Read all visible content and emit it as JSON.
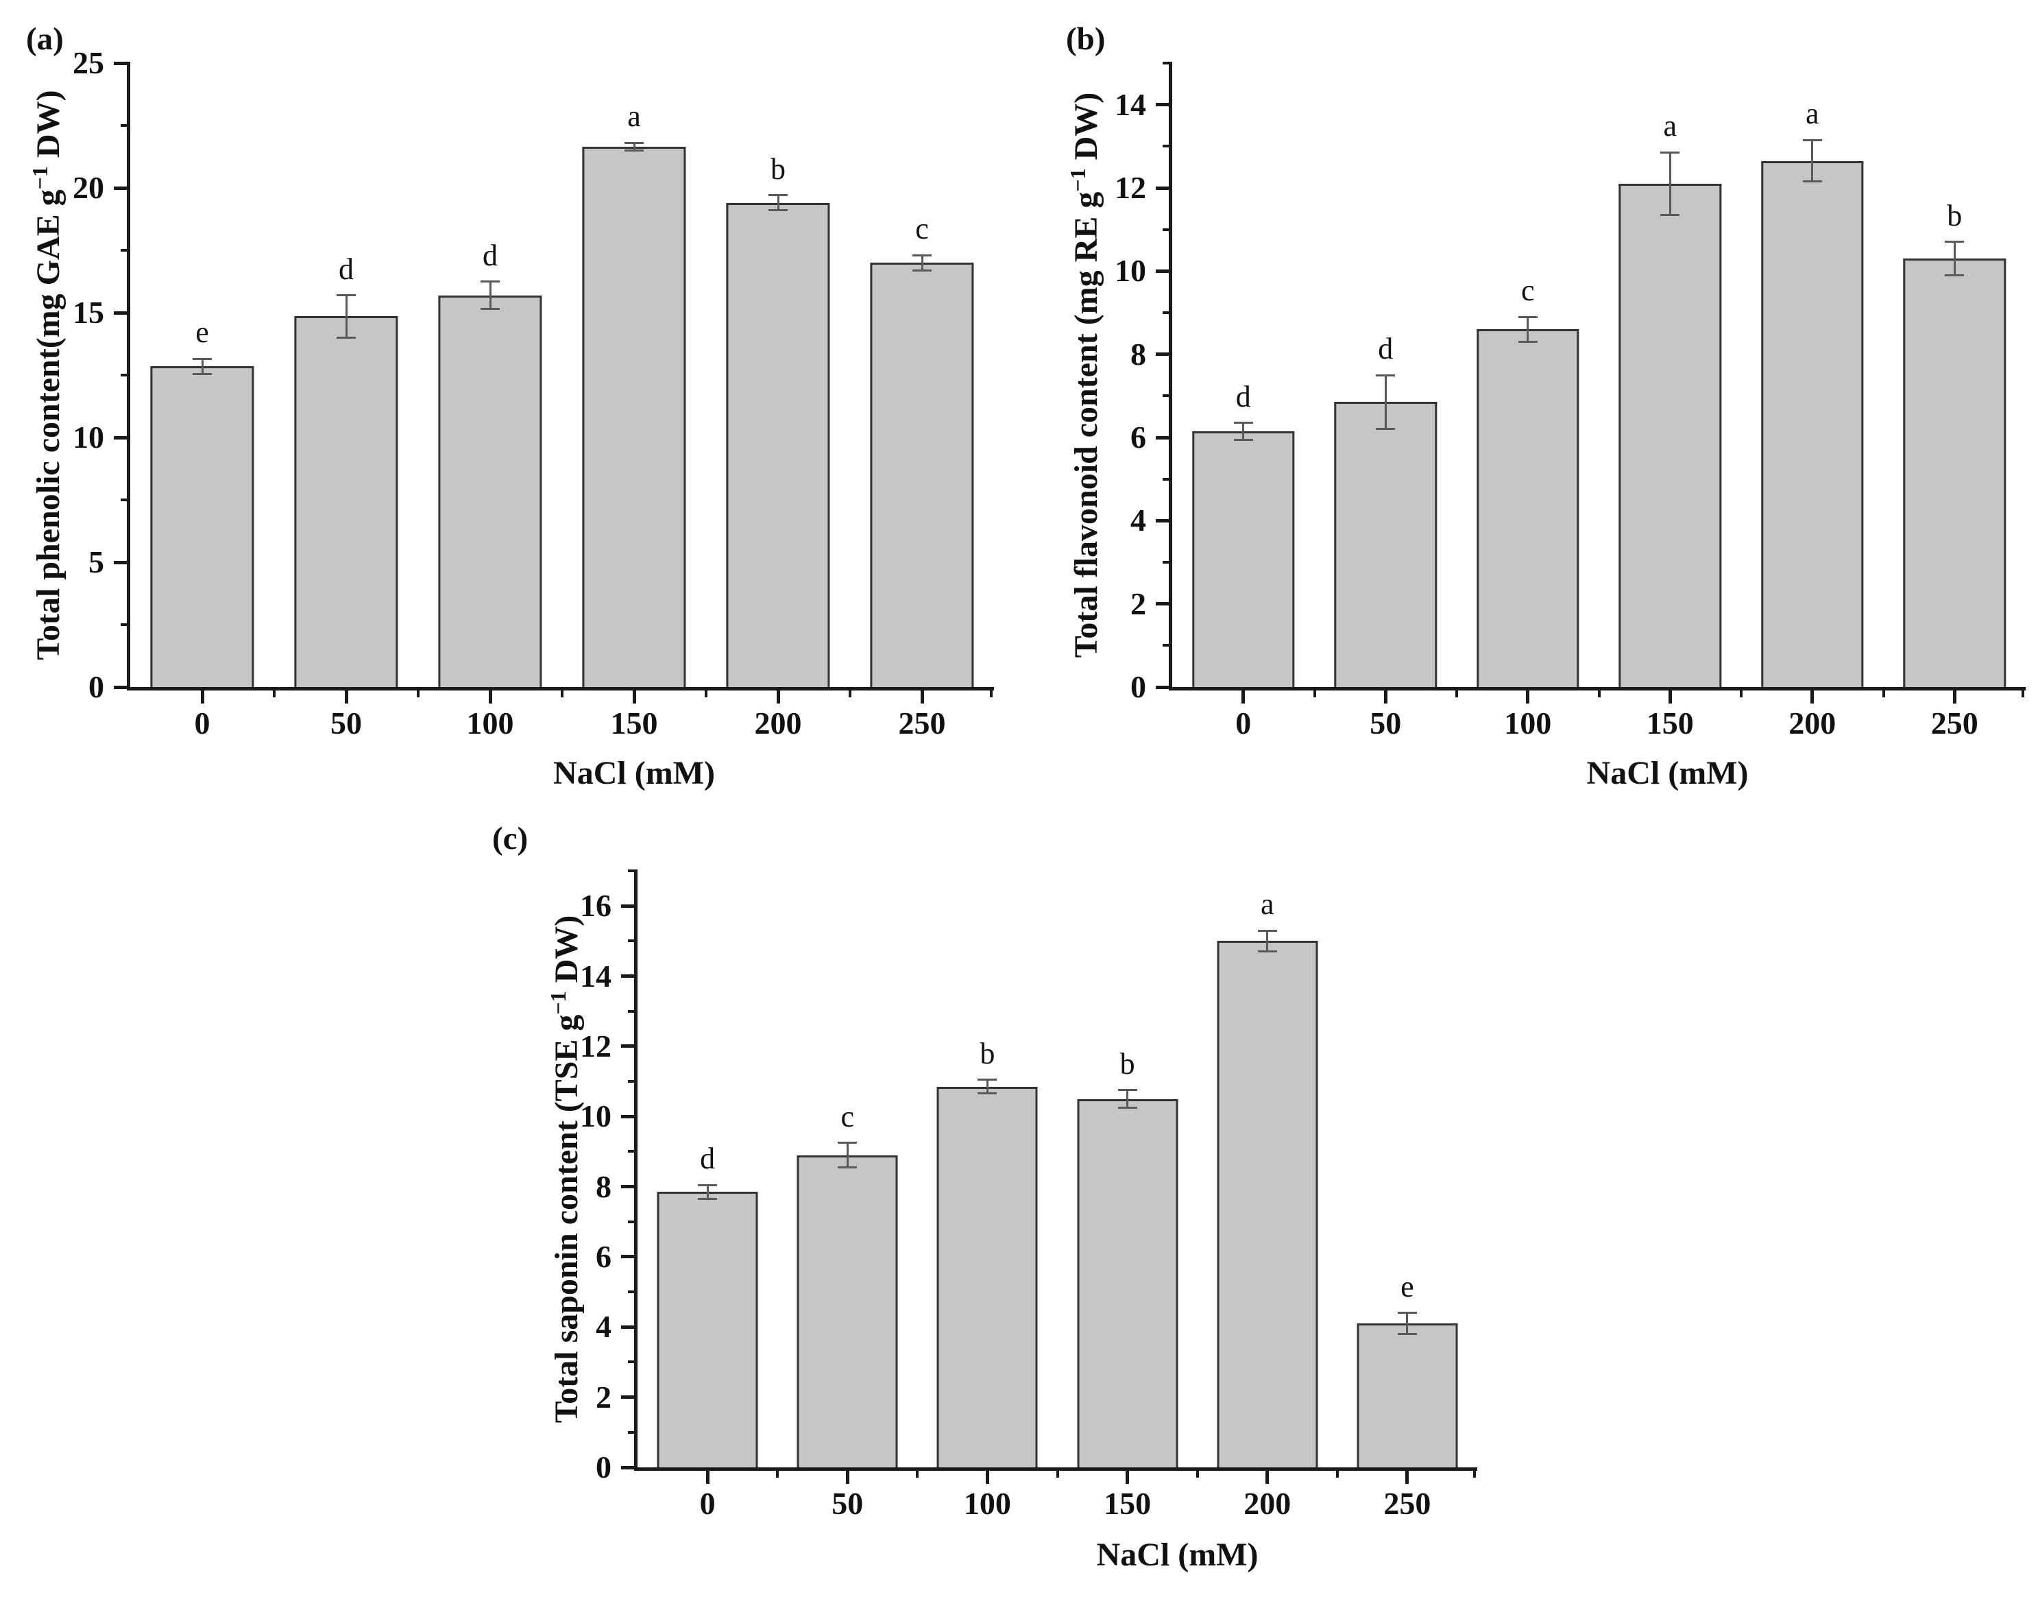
{
  "figure": {
    "background": "#ffffff",
    "bar_fill": "#c6c6c6",
    "bar_border": "#333333",
    "axis_color": "#1a1a1a",
    "error_bar_color": "#5a5a5a",
    "text_color": "#111111"
  },
  "chart_data": [
    {
      "type": "bar",
      "panel": "(a)",
      "ylabel_pre": "Total phenolic content(mg GAE g",
      "ylabel_sup": "−1",
      "ylabel_post": " DW)",
      "ylabel_text": "Total phenolic content(mg GAE g−1 DW)",
      "xlabel": "NaCl (mM)",
      "categories": [
        "0",
        "50",
        "100",
        "150",
        "200",
        "250"
      ],
      "values": [
        12.85,
        14.85,
        15.7,
        21.65,
        19.4,
        17.0
      ],
      "errors": [
        0.3,
        0.85,
        0.55,
        0.15,
        0.3,
        0.3
      ],
      "letters": [
        "e",
        "d",
        "d",
        "a",
        "b",
        "c"
      ],
      "ylim": [
        0,
        25
      ],
      "ytick_labels": [
        0,
        5,
        10,
        15,
        20,
        25
      ],
      "minor_step": 2.5,
      "grid": false,
      "legend": "none"
    },
    {
      "type": "bar",
      "panel": "(b)",
      "ylabel_pre": "Total flavonoid content (mg RE g",
      "ylabel_sup": "−1",
      "ylabel_post": " DW)",
      "ylabel_text": "Total flavonoid content (mg RE g−1 DW)",
      "xlabel": "NaCl (mM)",
      "categories": [
        "0",
        "50",
        "100",
        "150",
        "200",
        "250"
      ],
      "values": [
        6.15,
        6.85,
        8.6,
        12.1,
        12.65,
        10.3
      ],
      "errors": [
        0.2,
        0.65,
        0.3,
        0.75,
        0.5,
        0.4
      ],
      "letters": [
        "d",
        "d",
        "c",
        "a",
        "a",
        "b"
      ],
      "ylim": [
        0,
        15
      ],
      "ytick_labels": [
        0,
        2,
        4,
        6,
        8,
        10,
        12,
        14
      ],
      "minor_step": 1,
      "grid": false,
      "legend": "none"
    },
    {
      "type": "bar",
      "panel": "(c)",
      "ylabel_pre": "Total saponin content (TSE g",
      "ylabel_sup": "−1",
      "ylabel_post": " DW)",
      "ylabel_text": "Total saponin content (TSE g−1 DW)",
      "xlabel": "NaCl (mM)",
      "categories": [
        "0",
        "50",
        "100",
        "150",
        "200",
        "250"
      ],
      "values": [
        7.85,
        8.9,
        10.85,
        10.5,
        15.0,
        4.1
      ],
      "errors": [
        0.2,
        0.35,
        0.2,
        0.25,
        0.3,
        0.3
      ],
      "letters": [
        "d",
        "c",
        "b",
        "b",
        "a",
        "e"
      ],
      "ylim": [
        0,
        17
      ],
      "ytick_labels": [
        0,
        2,
        4,
        6,
        8,
        10,
        12,
        14,
        16
      ],
      "minor_step": 1,
      "grid": false,
      "legend": "none"
    }
  ]
}
